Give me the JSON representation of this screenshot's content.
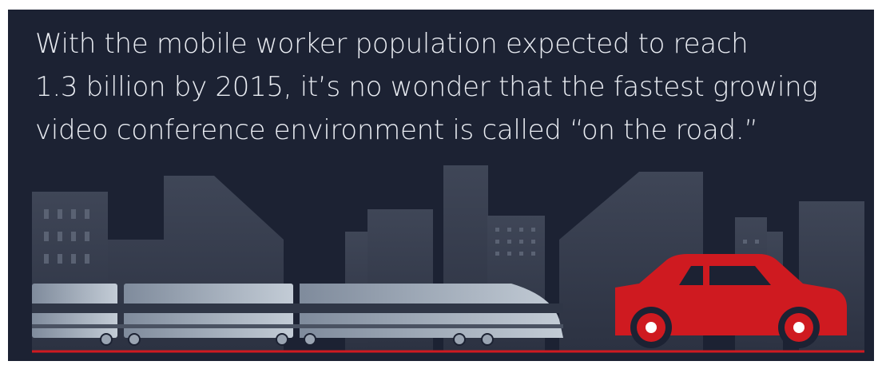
{
  "headline": {
    "lines": [
      "With the mobile worker population expected to reach",
      "1.3 billion by 2015, it’s no wonder that the fastest growing",
      "video conference environment is called “on the road.”"
    ]
  }
}
